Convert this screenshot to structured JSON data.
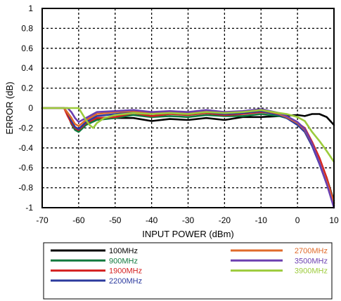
{
  "chart_data": {
    "type": "line",
    "title": "",
    "xlabel": "INPUT POWER (dBm)",
    "ylabel": "ERROR (dB)",
    "xlim": [
      -70,
      10
    ],
    "ylim": [
      -1,
      1
    ],
    "xticks": [
      "-70",
      "-60",
      "-50",
      "-40",
      "-30",
      "-20",
      "-10",
      "0",
      "10"
    ],
    "yticks": [
      "1",
      "0.8",
      "0.6",
      "0.4",
      "0.2",
      "0",
      "-0.2",
      "-0.4",
      "-0.6",
      "-0.8",
      "-1"
    ],
    "grid": true,
    "legend_position": "bottom",
    "series": [
      {
        "name": "100MHz",
        "color": "#000000",
        "x": [
          -70,
          -64,
          -62,
          -61,
          -60,
          -58,
          -55,
          -50,
          -45,
          -40,
          -35,
          -30,
          -25,
          -20,
          -15,
          -10,
          -5,
          0,
          2,
          4,
          6,
          8,
          10
        ],
        "y": [
          0,
          0,
          -0.1,
          -0.21,
          -0.23,
          -0.16,
          -0.11,
          -0.1,
          -0.1,
          -0.13,
          -0.11,
          -0.12,
          -0.1,
          -0.12,
          -0.09,
          -0.09,
          -0.08,
          -0.07,
          -0.08,
          -0.06,
          -0.06,
          -0.09,
          -0.17
        ]
      },
      {
        "name": "900MHz",
        "color": "#127a3e",
        "x": [
          -70,
          -64,
          -63,
          -62,
          -61,
          -60,
          -58,
          -55,
          -50,
          -45,
          -40,
          -35,
          -30,
          -25,
          -20,
          -15,
          -10,
          -5,
          -3,
          0,
          2,
          4,
          6,
          8,
          10
        ],
        "y": [
          0,
          0,
          -0.06,
          -0.16,
          -0.22,
          -0.24,
          -0.17,
          -0.12,
          -0.1,
          -0.07,
          -0.09,
          -0.08,
          -0.09,
          -0.07,
          -0.08,
          -0.08,
          -0.06,
          -0.08,
          -0.1,
          -0.16,
          -0.22,
          -0.36,
          -0.52,
          -0.7,
          -0.93
        ]
      },
      {
        "name": "1900MHz",
        "color": "#d42020",
        "x": [
          -70,
          -64,
          -63,
          -62,
          -61,
          -60,
          -58,
          -55,
          -50,
          -45,
          -40,
          -35,
          -30,
          -25,
          -20,
          -15,
          -10,
          -5,
          -3,
          0,
          2,
          4,
          6,
          8,
          10
        ],
        "y": [
          0,
          0,
          -0.08,
          -0.15,
          -0.2,
          -0.22,
          -0.15,
          -0.1,
          -0.09,
          -0.05,
          -0.08,
          -0.06,
          -0.07,
          -0.05,
          -0.07,
          -0.06,
          -0.04,
          -0.06,
          -0.09,
          -0.15,
          -0.2,
          -0.34,
          -0.5,
          -0.7,
          -0.95
        ]
      },
      {
        "name": "2200MHz",
        "color": "#2b3a9e",
        "x": [
          -70,
          -64,
          -63,
          -62,
          -61,
          -60,
          -58,
          -55,
          -50,
          -45,
          -40,
          -35,
          -30,
          -25,
          -20,
          -15,
          -10,
          -5,
          -3,
          0,
          2,
          4,
          6,
          8,
          10
        ],
        "y": [
          0,
          0,
          -0.05,
          -0.13,
          -0.19,
          -0.21,
          -0.14,
          -0.08,
          -0.06,
          -0.04,
          -0.06,
          -0.05,
          -0.06,
          -0.04,
          -0.06,
          -0.05,
          -0.03,
          -0.07,
          -0.1,
          -0.17,
          -0.24,
          -0.38,
          -0.56,
          -0.76,
          -0.98
        ]
      },
      {
        "name": "2700MHz",
        "color": "#e06a2a",
        "x": [
          -70,
          -64,
          -62,
          -61,
          -60,
          -58,
          -55,
          -50,
          -45,
          -40,
          -35,
          -30,
          -25,
          -20,
          -15,
          -10,
          -5,
          -3,
          0,
          2,
          4,
          6,
          8,
          10
        ],
        "y": [
          0,
          0,
          -0.1,
          -0.16,
          -0.18,
          -0.12,
          -0.06,
          -0.04,
          -0.03,
          -0.05,
          -0.04,
          -0.05,
          -0.03,
          -0.05,
          -0.04,
          -0.02,
          -0.06,
          -0.09,
          -0.15,
          -0.22,
          -0.36,
          -0.54,
          -0.74,
          -0.96
        ]
      },
      {
        "name": "3500MHz",
        "color": "#6b3fb0",
        "x": [
          -70,
          -63,
          -62,
          -61,
          -60,
          -58,
          -55,
          -50,
          -45,
          -40,
          -35,
          -30,
          -25,
          -20,
          -15,
          -10,
          -5,
          -3,
          0,
          2,
          4,
          6,
          8,
          10
        ],
        "y": [
          0,
          0,
          -0.04,
          -0.1,
          -0.14,
          -0.1,
          -0.04,
          -0.03,
          -0.02,
          -0.04,
          -0.03,
          -0.04,
          -0.02,
          -0.04,
          -0.03,
          -0.01,
          -0.05,
          -0.08,
          -0.14,
          -0.21,
          -0.36,
          -0.55,
          -0.76,
          -1.0
        ]
      },
      {
        "name": "3900MHz",
        "color": "#9ccb3b",
        "x": [
          -70,
          -60,
          -59,
          -58,
          -57,
          -56,
          -55,
          -53,
          -50,
          -45,
          -40,
          -35,
          -30,
          -25,
          -20,
          -15,
          -10,
          -5,
          -3,
          0,
          2,
          4,
          6,
          8,
          10
        ],
        "y": [
          0,
          0,
          -0.06,
          -0.12,
          -0.17,
          -0.2,
          -0.15,
          -0.1,
          -0.07,
          -0.05,
          -0.06,
          -0.05,
          -0.06,
          -0.04,
          -0.05,
          -0.04,
          -0.02,
          -0.05,
          -0.06,
          -0.09,
          -0.13,
          -0.24,
          -0.33,
          -0.43,
          -0.54
        ]
      }
    ]
  }
}
